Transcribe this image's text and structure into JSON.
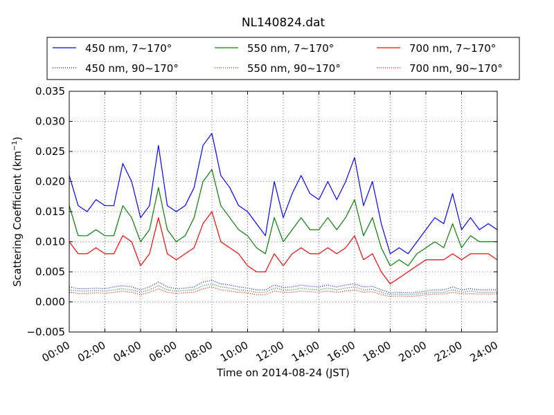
{
  "chart_data": {
    "type": "line",
    "title": "NL140824.dat",
    "xlabel": "Time on 2014-08-24 (JST)",
    "ylabel": "Scattering Coefficient (km",
    "ylabel_sup": "−1",
    "ylabel_end": ")",
    "xlim": [
      0,
      24
    ],
    "ylim": [
      -0.005,
      0.035
    ],
    "grid": true,
    "legend_position": "top",
    "x_ticks": [
      0,
      2,
      4,
      6,
      8,
      10,
      12,
      14,
      16,
      18,
      20,
      22,
      24
    ],
    "x_tick_labels": [
      "00:00",
      "02:00",
      "04:00",
      "06:00",
      "08:00",
      "10:00",
      "12:00",
      "14:00",
      "16:00",
      "18:00",
      "20:00",
      "22:00",
      "24:00"
    ],
    "y_ticks": [
      -0.005,
      0.0,
      0.005,
      0.01,
      0.015,
      0.02,
      0.025,
      0.03,
      0.035
    ],
    "y_tick_labels": [
      "−0.005",
      "0.000",
      "0.005",
      "0.010",
      "0.015",
      "0.020",
      "0.025",
      "0.030",
      "0.035"
    ],
    "x": [
      0,
      0.5,
      1,
      1.5,
      2,
      2.5,
      3,
      3.5,
      4,
      4.5,
      5,
      5.5,
      6,
      6.5,
      7,
      7.5,
      8,
      8.5,
      9,
      9.5,
      10,
      10.5,
      11,
      11.5,
      12,
      12.5,
      13,
      13.5,
      14,
      14.5,
      15,
      15.5,
      16,
      16.5,
      17,
      17.5,
      18,
      18.5,
      19,
      19.5,
      20,
      20.5,
      21,
      21.5,
      22,
      22.5,
      23,
      23.5,
      24
    ],
    "series": [
      {
        "name": "450 nm, 7∼170°",
        "color": "#0000ff",
        "style": "solid",
        "values": [
          0.021,
          0.016,
          0.015,
          0.017,
          0.016,
          0.016,
          0.023,
          0.02,
          0.014,
          0.016,
          0.026,
          0.016,
          0.015,
          0.016,
          0.019,
          0.026,
          0.028,
          0.021,
          0.019,
          0.016,
          0.015,
          0.013,
          0.011,
          0.02,
          0.014,
          0.018,
          0.021,
          0.018,
          0.017,
          0.02,
          0.017,
          0.02,
          0.024,
          0.016,
          0.02,
          0.013,
          0.008,
          0.009,
          0.008,
          0.01,
          0.012,
          0.014,
          0.013,
          0.018,
          0.012,
          0.014,
          0.012,
          0.013,
          0.012
        ]
      },
      {
        "name": "450 nm, 90∼170°",
        "color": "#0000ff",
        "style": "dotted",
        "values": [
          0.0025,
          0.0022,
          0.0022,
          0.0023,
          0.0022,
          0.0025,
          0.0027,
          0.0025,
          0.002,
          0.0025,
          0.0033,
          0.0025,
          0.0022,
          0.0023,
          0.0025,
          0.0033,
          0.0036,
          0.003,
          0.0028,
          0.0025,
          0.0023,
          0.002,
          0.002,
          0.0028,
          0.0024,
          0.0025,
          0.0028,
          0.0026,
          0.0025,
          0.0028,
          0.0025,
          0.0028,
          0.003,
          0.0025,
          0.0026,
          0.002,
          0.0015,
          0.0016,
          0.0015,
          0.0016,
          0.0018,
          0.002,
          0.002,
          0.0025,
          0.002,
          0.0022,
          0.002,
          0.002,
          0.002
        ]
      },
      {
        "name": "550 nm, 7∼170°",
        "color": "#008000",
        "style": "solid",
        "values": [
          0.016,
          0.011,
          0.011,
          0.012,
          0.011,
          0.011,
          0.016,
          0.014,
          0.01,
          0.012,
          0.019,
          0.012,
          0.01,
          0.011,
          0.014,
          0.02,
          0.022,
          0.016,
          0.014,
          0.012,
          0.011,
          0.009,
          0.008,
          0.014,
          0.01,
          0.012,
          0.014,
          0.012,
          0.012,
          0.014,
          0.012,
          0.014,
          0.017,
          0.011,
          0.014,
          0.009,
          0.006,
          0.007,
          0.006,
          0.008,
          0.009,
          0.01,
          0.009,
          0.013,
          0.009,
          0.011,
          0.01,
          0.01,
          0.01
        ]
      },
      {
        "name": "550 nm, 90∼170°",
        "color": "#008000",
        "style": "dotted",
        "values": [
          0.002,
          0.0018,
          0.0018,
          0.0019,
          0.0018,
          0.002,
          0.0022,
          0.002,
          0.0016,
          0.002,
          0.0027,
          0.002,
          0.0018,
          0.0019,
          0.002,
          0.0027,
          0.003,
          0.0025,
          0.0023,
          0.002,
          0.0019,
          0.0016,
          0.0016,
          0.0023,
          0.002,
          0.002,
          0.0023,
          0.0021,
          0.002,
          0.0023,
          0.002,
          0.0023,
          0.0025,
          0.002,
          0.0021,
          0.0016,
          0.0012,
          0.0013,
          0.0012,
          0.0013,
          0.0015,
          0.0016,
          0.0016,
          0.002,
          0.0016,
          0.0018,
          0.0016,
          0.0016,
          0.0016
        ]
      },
      {
        "name": "700 nm, 7∼170°",
        "color": "#ff0000",
        "style": "solid",
        "values": [
          0.01,
          0.008,
          0.008,
          0.009,
          0.008,
          0.008,
          0.011,
          0.01,
          0.006,
          0.008,
          0.014,
          0.008,
          0.007,
          0.008,
          0.009,
          0.013,
          0.015,
          0.01,
          0.009,
          0.008,
          0.006,
          0.005,
          0.005,
          0.008,
          0.006,
          0.008,
          0.009,
          0.008,
          0.008,
          0.009,
          0.008,
          0.009,
          0.011,
          0.007,
          0.008,
          0.005,
          0.003,
          0.004,
          0.005,
          0.006,
          0.007,
          0.007,
          0.007,
          0.008,
          0.007,
          0.008,
          0.008,
          0.008,
          0.007
        ]
      },
      {
        "name": "700 nm, 90∼170°",
        "color": "#ff0000",
        "style": "dotted",
        "values": [
          0.0016,
          0.0014,
          0.0014,
          0.0015,
          0.0014,
          0.0016,
          0.0018,
          0.0016,
          0.0012,
          0.0016,
          0.0022,
          0.0016,
          0.0014,
          0.0015,
          0.0016,
          0.0022,
          0.0025,
          0.002,
          0.0018,
          0.0016,
          0.0015,
          0.0012,
          0.0012,
          0.0018,
          0.0016,
          0.0016,
          0.0018,
          0.0017,
          0.0016,
          0.0018,
          0.0016,
          0.0018,
          0.002,
          0.0016,
          0.0017,
          0.0012,
          0.0009,
          0.001,
          0.0009,
          0.001,
          0.0012,
          0.0013,
          0.0013,
          0.0016,
          0.0013,
          0.0014,
          0.0013,
          0.0013,
          0.0013
        ]
      }
    ]
  }
}
